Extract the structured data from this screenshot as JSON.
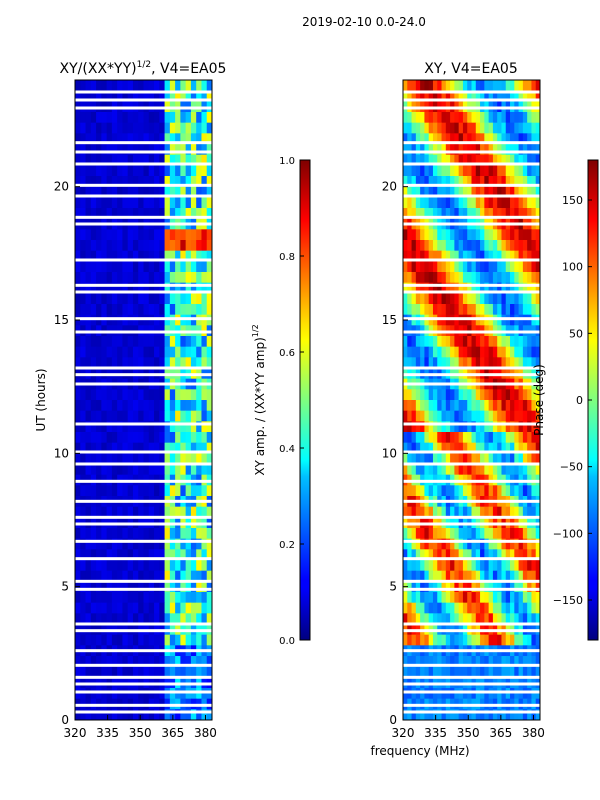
{
  "figure_title": "2019-02-10 0.0-24.0",
  "x_axis_label": "frequency (MHz)",
  "chart_data": [
    {
      "type": "heatmap",
      "title": "XY/(XX*YY)$^{1/2}$, V4=EA05",
      "title_main": "XY/(XX*YY)",
      "title_sup": "1/2",
      "title_tail": ", V4=EA05",
      "xlabel": "",
      "ylabel": "UT (hours)",
      "xlim": [
        320,
        383
      ],
      "ylim": [
        0,
        24
      ],
      "x_ticks": [
        320,
        335,
        350,
        365,
        380
      ],
      "y_ticks": [
        0,
        5,
        10,
        15,
        20
      ],
      "colorbar": {
        "label": "XY amp. / (XX*YY amp)$^{1/2}$",
        "label_main": "XY amp. / (XX*YY amp)",
        "label_sup": "1/2",
        "range": [
          0.0,
          1.0
        ],
        "ticks": [
          "0.0",
          "0.2",
          "0.4",
          "0.6",
          "0.8",
          "1.0"
        ],
        "tick_values": [
          0.0,
          0.2,
          0.4,
          0.6,
          0.8,
          1.0
        ],
        "colormap": "jet"
      }
    },
    {
      "type": "heatmap",
      "title": "XY, V4=EA05",
      "xlabel": "frequency (MHz)",
      "ylabel": "",
      "xlim": [
        320,
        383
      ],
      "ylim": [
        0,
        24
      ],
      "x_ticks": [
        320,
        335,
        350,
        365,
        380
      ],
      "y_ticks": [
        0,
        5,
        10,
        15,
        20
      ],
      "colorbar": {
        "label": "Phase (deg)",
        "range": [
          -180,
          180
        ],
        "ticks": [
          "-150",
          "-100",
          "-50",
          "0",
          "50",
          "100",
          "150"
        ],
        "tick_values": [
          -150,
          -100,
          -50,
          0,
          50,
          100,
          150
        ],
        "colormap": "jet"
      }
    }
  ],
  "flagged_ut_hours": [
    0.3,
    0.55,
    1.05,
    1.35,
    1.6,
    2.05,
    2.6,
    3.35,
    3.6,
    4.9,
    5.2,
    6.05,
    6.7,
    7.35,
    7.6,
    8.2,
    8.95,
    9.6,
    10.05,
    11.1,
    12.6,
    12.95,
    13.2,
    14.55,
    15.05,
    16.05,
    16.3,
    17.25,
    18.6,
    18.85,
    19.65,
    20.05,
    20.85,
    21.3,
    21.65,
    22.95,
    23.25,
    23.55
  ]
}
